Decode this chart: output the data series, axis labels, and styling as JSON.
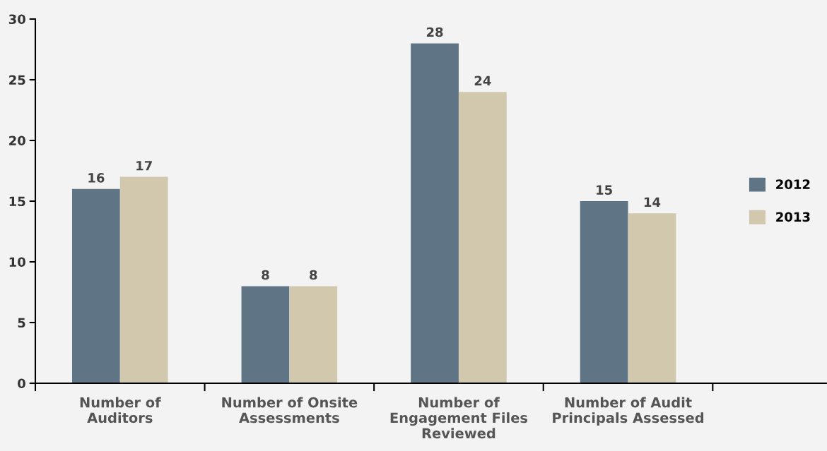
{
  "chart_data": {
    "type": "bar",
    "categories": [
      "Number of\nAuditors",
      "Number of Onsite\nAssessments",
      "Number of\nEngagement Files\nReviewed",
      "Number of Audit\nPrincipals Assessed"
    ],
    "series": [
      {
        "name": "2012",
        "color": "#5f7585",
        "values": [
          16,
          8,
          28,
          15
        ]
      },
      {
        "name": "2013",
        "color": "#d1c8ae",
        "values": [
          17,
          8,
          24,
          14
        ]
      }
    ],
    "ylim": [
      0,
      30
    ],
    "yticks": [
      0,
      5,
      10,
      15,
      20,
      25,
      30
    ],
    "data_labels": true,
    "legend": "right",
    "grid": false
  }
}
